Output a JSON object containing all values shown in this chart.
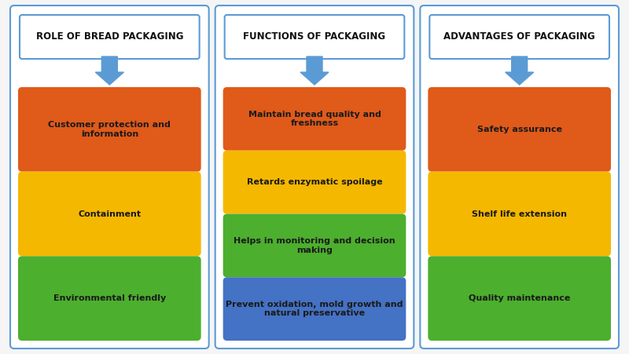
{
  "background_color": "#f5f5f5",
  "panel_border_color": "#5b9bd5",
  "panel_bg": "#ffffff",
  "arrow_color": "#5b9bd5",
  "columns": [
    {
      "title": "ROLE OF BREAD PACKAGING",
      "items": [
        {
          "text": "Customer protection and\ninformation",
          "color": "#e05a1a"
        },
        {
          "text": "Containment",
          "color": "#f5b800"
        },
        {
          "text": "Environmental friendly",
          "color": "#4caf2e"
        }
      ]
    },
    {
      "title": "FUNCTIONS OF PACKAGING",
      "items": [
        {
          "text": "Maintain bread quality and\nfreshness",
          "color": "#e05a1a"
        },
        {
          "text": "Retards enzymatic spoilage",
          "color": "#f5b800"
        },
        {
          "text": "Helps in monitoring and decision\nmaking",
          "color": "#4caf2e"
        },
        {
          "text": "Prevent oxidation, mold growth and\nnatural preservative",
          "color": "#4472c4"
        }
      ]
    },
    {
      "title": "ADVANTAGES OF PACKAGING",
      "items": [
        {
          "text": "Safety assurance",
          "color": "#e05a1a"
        },
        {
          "text": "Shelf life extension",
          "color": "#f5b800"
        },
        {
          "text": "Quality maintenance",
          "color": "#4caf2e"
        }
      ]
    }
  ],
  "title_fontsize": 8.5,
  "item_fontsize": 8.0,
  "fig_width": 8.0,
  "fig_height": 4.51
}
